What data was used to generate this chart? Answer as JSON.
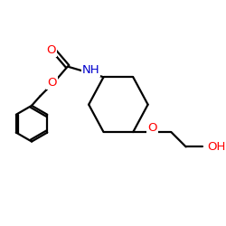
{
  "bg_color": "#ffffff",
  "bond_color": "#000000",
  "bond_lw": 1.6,
  "atom_colors": {
    "O": "#ff0000",
    "N": "#0000cd",
    "C": "#000000"
  },
  "font_size": 9.5,
  "figsize": [
    2.5,
    2.5
  ],
  "dpi": 100
}
